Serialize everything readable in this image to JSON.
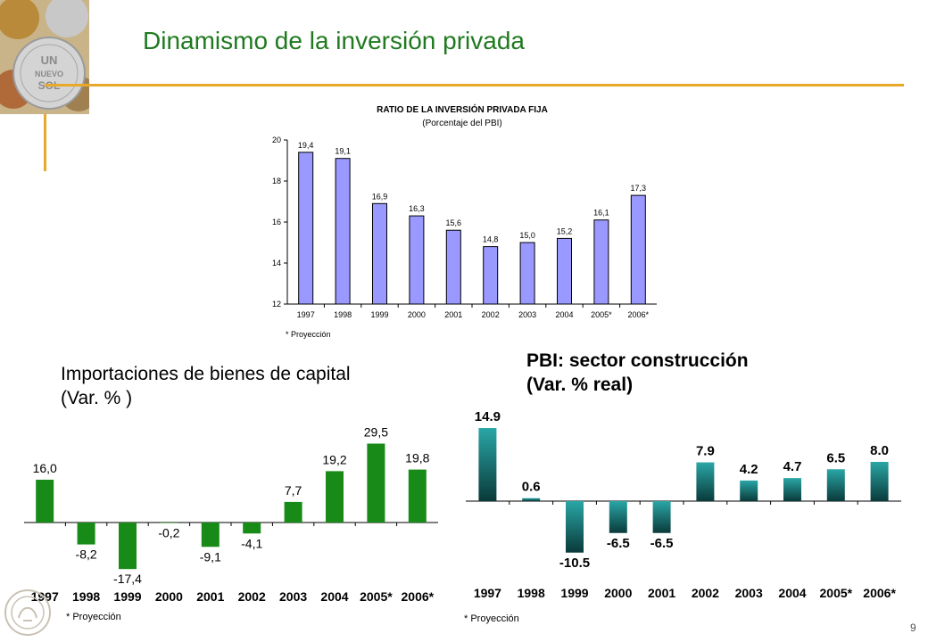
{
  "header": {
    "title": "Dinamismo de la inversión privada"
  },
  "coin_text": {
    "line1": "UN",
    "line2": "NUEVO",
    "line3": "SOL"
  },
  "page_number": "9",
  "chart_data": [
    {
      "type": "bar",
      "title": "RATIO DE LA INVERSIÓN PRIVADA FIJA",
      "subtitle": "(Porcentaje del PBI)",
      "categories": [
        "1997",
        "1998",
        "1999",
        "2000",
        "2001",
        "2002",
        "2003",
        "2004",
        "2005*",
        "2006*"
      ],
      "values": [
        19.4,
        19.1,
        16.9,
        16.3,
        15.6,
        14.8,
        15.0,
        15.2,
        16.1,
        17.3
      ],
      "value_labels": [
        "19,4",
        "19,1",
        "16,9",
        "16,3",
        "15,6",
        "14,8",
        "15,0",
        "15,2",
        "16,1",
        "17,3"
      ],
      "ylim": [
        12,
        20
      ],
      "yticks": [
        "12",
        "14",
        "16",
        "18",
        "20"
      ],
      "footnote": "* Proyección",
      "bar_color": "#9999ff"
    },
    {
      "type": "bar",
      "title_line1": "Importaciones de bienes de capital",
      "title_line2": "(Var. % )",
      "categories": [
        "1997",
        "1998",
        "1999",
        "2000",
        "2001",
        "2002",
        "2003",
        "2004",
        "2005*",
        "2006*"
      ],
      "values": [
        16.0,
        -8.2,
        -17.4,
        -0.2,
        -9.1,
        -4.1,
        7.7,
        19.2,
        29.5,
        19.8
      ],
      "value_labels": [
        "16,0",
        "-8,2",
        "-17,4",
        "-0,2",
        "-9,1",
        "-4,1",
        "7,7",
        "19,2",
        "29,5",
        "19,8"
      ],
      "footnote": "* Proyección",
      "bar_color": "#188a18"
    },
    {
      "type": "bar",
      "title_line1": "PBI: sector construcción",
      "title_line2": "(Var. % real)",
      "categories": [
        "1997",
        "1998",
        "1999",
        "2000",
        "2001",
        "2002",
        "2003",
        "2004",
        "2005*",
        "2006*"
      ],
      "values": [
        14.9,
        0.6,
        -10.5,
        -6.5,
        -6.5,
        7.9,
        4.2,
        4.7,
        6.5,
        8.0
      ],
      "value_labels": [
        "14.9",
        "0.6",
        "-10.5",
        "-6.5",
        "-6.5",
        "7.9",
        "4.2",
        "4.7",
        "6.5",
        "8.0"
      ],
      "footnote": "* Proyección",
      "bar_color": "#1a8a8a"
    }
  ]
}
